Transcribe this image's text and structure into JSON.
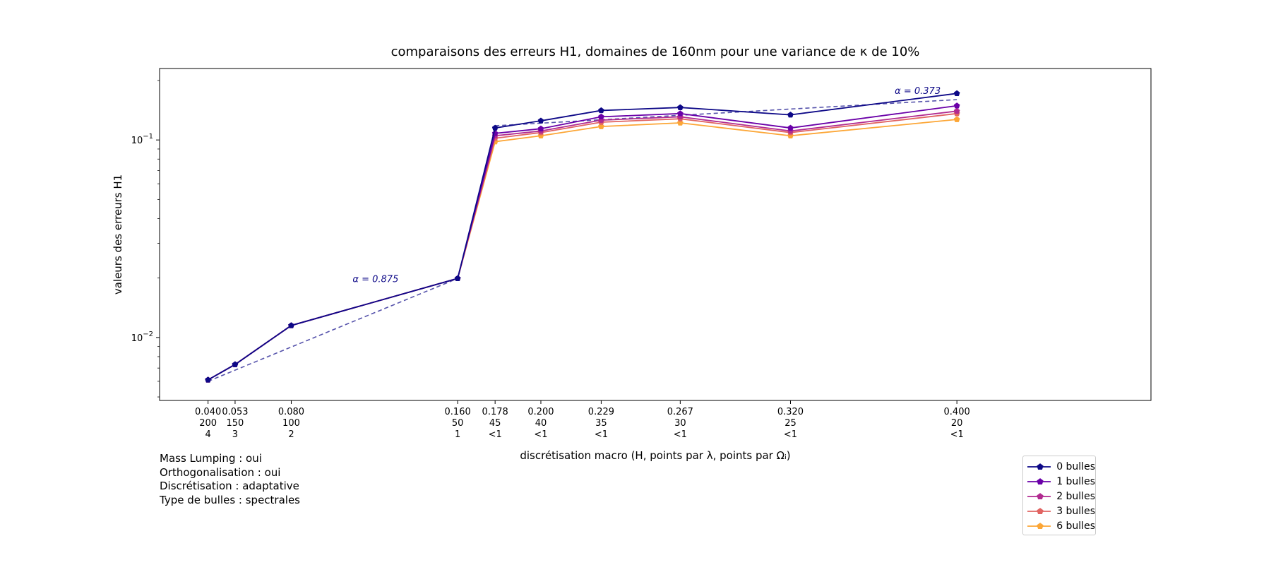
{
  "chart_data": {
    "type": "line",
    "title": "comparaisons des erreurs H1, domaines de 160nm pour une variance de κ de 10%",
    "xlabel": "discrétisation macro (H, points par λ, points par Ωᵢ)",
    "ylabel": "valeurs des erreurs H1",
    "yscale": "log",
    "ylim": [
      0.0048,
      0.23
    ],
    "xlim": [
      0.0167,
      0.4933
    ],
    "y_ticks": [
      {
        "value": 0.1,
        "base": "10",
        "exp": "−1"
      },
      {
        "value": 0.01,
        "base": "10",
        "exp": "−2"
      }
    ],
    "x": [
      0.04,
      0.053,
      0.08,
      0.16,
      0.178,
      0.2,
      0.229,
      0.267,
      0.32,
      0.4
    ],
    "tick_labels": [
      [
        "0.040",
        "200",
        "4"
      ],
      [
        "0.053",
        "150",
        "3"
      ],
      [
        "0.080",
        "100",
        "2"
      ],
      [
        "0.160",
        "50",
        "1"
      ],
      [
        "0.178",
        "45",
        "<1"
      ],
      [
        "0.200",
        "40",
        "<1"
      ],
      [
        "0.229",
        "35",
        "<1"
      ],
      [
        "0.267",
        "30",
        "<1"
      ],
      [
        "0.320",
        "25",
        "<1"
      ],
      [
        "0.400",
        "20",
        "<1"
      ]
    ],
    "series": [
      {
        "name": "0 bulles",
        "color": "#0d0887",
        "marker": "pentagon",
        "values": [
          0.0061,
          0.0073,
          0.0115,
          0.0199,
          0.115,
          0.125,
          0.141,
          0.146,
          0.134,
          0.172
        ]
      },
      {
        "name": "1 bulles",
        "color": "#6a00a8",
        "marker": "pentagon",
        "values": [
          0.0061,
          0.0073,
          0.0115,
          0.0199,
          0.108,
          0.114,
          0.131,
          0.136,
          0.115,
          0.149
        ]
      },
      {
        "name": "2 bulles",
        "color": "#b12a90",
        "marker": "pentagon",
        "values": [
          0.0061,
          0.0073,
          0.0115,
          0.0199,
          0.105,
          0.111,
          0.126,
          0.131,
          0.111,
          0.14
        ]
      },
      {
        "name": "3 bulles",
        "color": "#e16462",
        "marker": "pentagon",
        "values": [
          0.0061,
          0.0073,
          0.0115,
          0.0199,
          0.102,
          0.109,
          0.123,
          0.128,
          0.109,
          0.136
        ]
      },
      {
        "name": "6 bulles",
        "color": "#fca636",
        "marker": "pentagon",
        "values": [
          0.0061,
          0.0073,
          0.0115,
          0.0199,
          0.098,
          0.105,
          0.117,
          0.122,
          0.105,
          0.127
        ]
      }
    ],
    "fits": [
      {
        "label": "α = 0.875",
        "color": "#0d0887",
        "style": "dashed",
        "x_start": 0.04,
        "y_start": 0.006,
        "x_end": 0.16,
        "y_end": 0.0199
      },
      {
        "label": "α = 0.373",
        "color": "#0d0887",
        "style": "dashed",
        "x_start": 0.178,
        "y_start": 0.118,
        "x_end": 0.4,
        "y_end": 0.16
      }
    ],
    "legend_position": "lower-right, below axes",
    "grid": false
  },
  "info_lines": [
    "Mass Lumping : oui",
    "Orthogonalisation : oui",
    "Discrétisation : adaptative",
    "Type de bulles : spectrales"
  ]
}
